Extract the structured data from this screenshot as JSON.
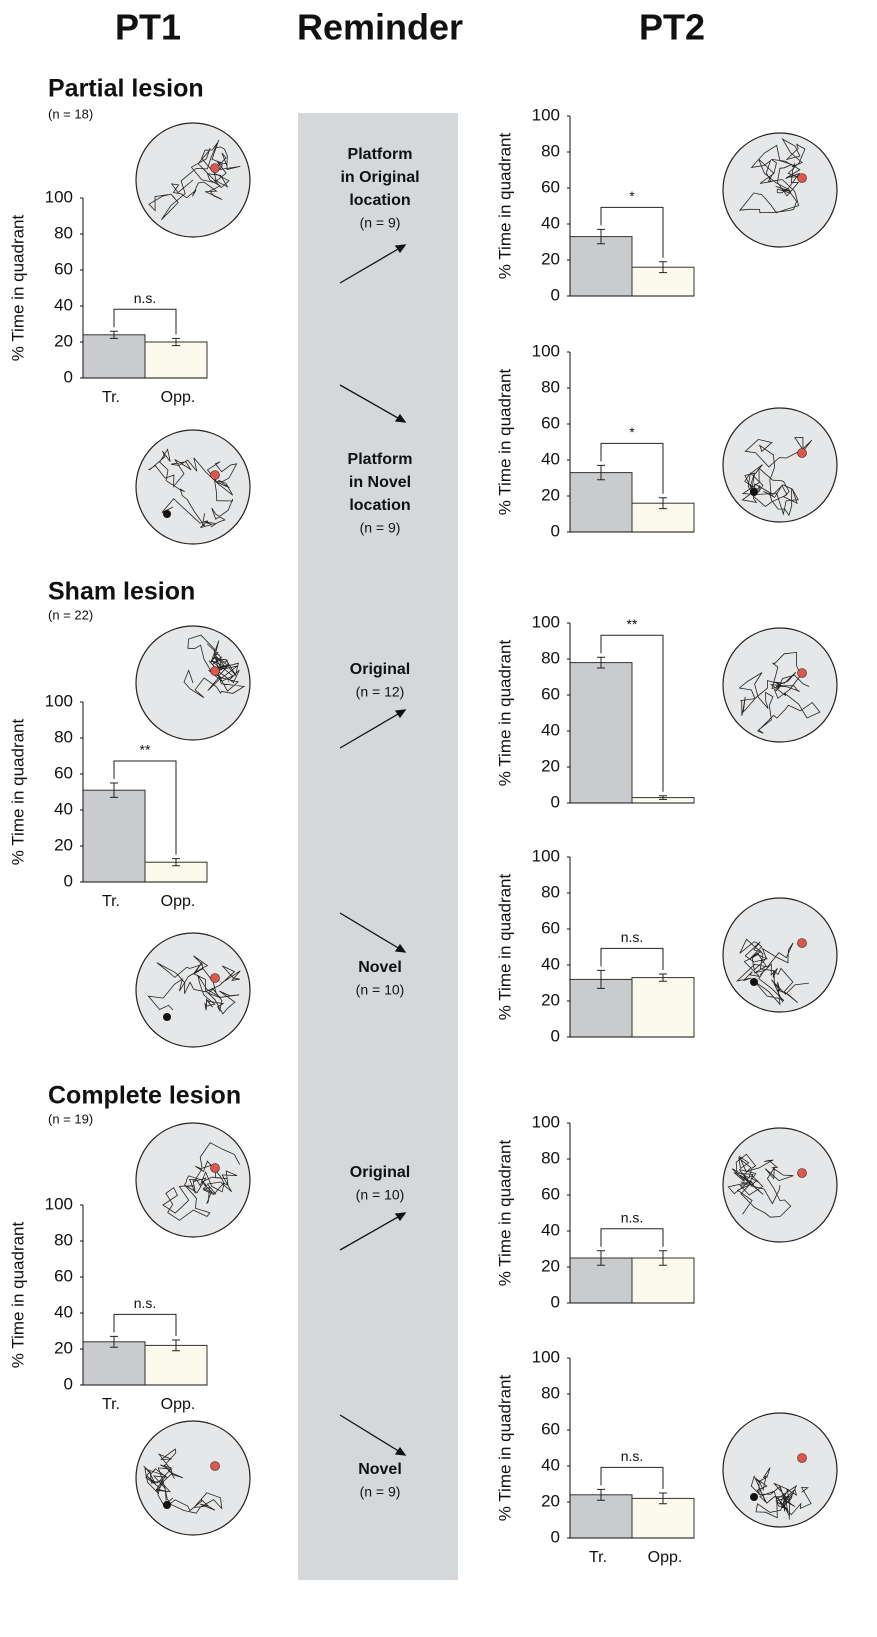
{
  "headers": [
    "PT1",
    "Reminder",
    "PT2"
  ],
  "groups": [
    {
      "title": "Partial lesion",
      "n": "(n = 18)"
    },
    {
      "title": "Sham lesion",
      "n": "(n = 22)"
    },
    {
      "title": "Complete lesion",
      "n": "(n = 19)"
    }
  ],
  "reminders": [
    {
      "lines": [
        "Platform",
        "in Original",
        "location"
      ],
      "n": "(n = 9)"
    },
    {
      "lines": [
        "Platform",
        "in Novel",
        "location"
      ],
      "n": "(n = 9)"
    },
    {
      "lines": [
        "Original"
      ],
      "n": "(n = 12)"
    },
    {
      "lines": [
        "Novel"
      ],
      "n": "(n = 10)"
    },
    {
      "lines": [
        "Original"
      ],
      "n": "(n = 10)"
    },
    {
      "lines": [
        "Novel"
      ],
      "n": "(n = 9)"
    }
  ],
  "chart_data": [
    {
      "type": "bar",
      "ylabel": "% Time in quadrant",
      "categories": [
        "Tr.",
        "Opp."
      ],
      "values": [
        24,
        20
      ],
      "errors": [
        2,
        2
      ],
      "colors": [
        "#c9cbcd",
        "#fbfaec"
      ],
      "annotation": "n.s.",
      "ylim": [
        0,
        100
      ],
      "yticks": [
        0,
        20,
        40,
        60,
        80,
        100
      ]
    },
    {
      "type": "bar",
      "ylabel": "% Time in quadrant",
      "categories": [
        "Tr.",
        "Opp."
      ],
      "values": [
        51,
        11
      ],
      "errors": [
        4,
        2
      ],
      "colors": [
        "#c9cbcd",
        "#fbfaec"
      ],
      "annotation": "**",
      "ylim": [
        0,
        100
      ],
      "yticks": [
        0,
        20,
        40,
        60,
        80,
        100
      ]
    },
    {
      "type": "bar",
      "ylabel": "% Time in quadrant",
      "categories": [
        "Tr.",
        "Opp."
      ],
      "values": [
        24,
        22
      ],
      "errors": [
        3,
        3
      ],
      "colors": [
        "#c9cbcd",
        "#fbfaec"
      ],
      "annotation": "n.s.",
      "ylim": [
        0,
        100
      ],
      "yticks": [
        0,
        20,
        40,
        60,
        80,
        100
      ]
    },
    {
      "type": "bar",
      "ylabel": "% Time in quadrant",
      "categories": [
        null,
        null
      ],
      "values": [
        33,
        16
      ],
      "errors": [
        4,
        3
      ],
      "colors": [
        "#c9cbcd",
        "#fbfaec"
      ],
      "annotation": "*",
      "ylim": [
        0,
        100
      ],
      "yticks": [
        0,
        20,
        40,
        60,
        80,
        100
      ]
    },
    {
      "type": "bar",
      "ylabel": "% Time in quadrant",
      "categories": [
        null,
        null
      ],
      "values": [
        33,
        16
      ],
      "errors": [
        4,
        3
      ],
      "colors": [
        "#c9cbcd",
        "#fbfaec"
      ],
      "annotation": "*",
      "ylim": [
        0,
        100
      ],
      "yticks": [
        0,
        20,
        40,
        60,
        80,
        100
      ]
    },
    {
      "type": "bar",
      "ylabel": "% Time in quadrant",
      "categories": [
        null,
        null
      ],
      "values": [
        78,
        3
      ],
      "errors": [
        3,
        1
      ],
      "colors": [
        "#c9cbcd",
        "#fbfaec"
      ],
      "annotation": "**",
      "ylim": [
        0,
        100
      ],
      "yticks": [
        0,
        20,
        40,
        60,
        80,
        100
      ]
    },
    {
      "type": "bar",
      "ylabel": "% Time in quadrant",
      "categories": [
        null,
        null
      ],
      "values": [
        32,
        33
      ],
      "errors": [
        5,
        2
      ],
      "colors": [
        "#c9cbcd",
        "#fbfaec"
      ],
      "annotation": "n.s.",
      "ylim": [
        0,
        100
      ],
      "yticks": [
        0,
        20,
        40,
        60,
        80,
        100
      ]
    },
    {
      "type": "bar",
      "ylabel": "% Time in quadrant",
      "categories": [
        null,
        null
      ],
      "values": [
        25,
        25
      ],
      "errors": [
        4,
        4
      ],
      "colors": [
        "#c9cbcd",
        "#fbfaec"
      ],
      "annotation": "n.s.",
      "ylim": [
        0,
        100
      ],
      "yticks": [
        0,
        20,
        40,
        60,
        80,
        100
      ]
    },
    {
      "type": "bar",
      "ylabel": "% Time in quadrant",
      "categories": [
        "Tr.",
        "Opp."
      ],
      "values": [
        24,
        22
      ],
      "errors": [
        3,
        3
      ],
      "colors": [
        "#c9cbcd",
        "#fbfaec"
      ],
      "annotation": "n.s.",
      "ylim": [
        0,
        100
      ],
      "yticks": [
        0,
        20,
        40,
        60,
        80,
        100
      ]
    }
  ]
}
